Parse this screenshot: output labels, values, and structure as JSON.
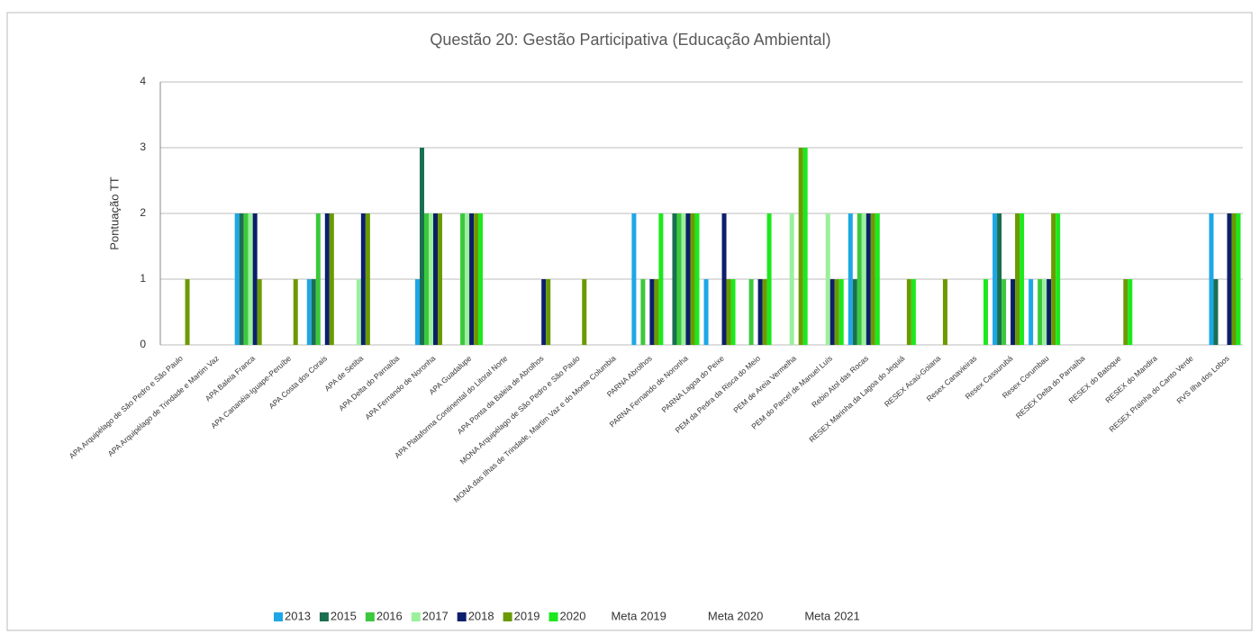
{
  "chart_data": {
    "type": "bar",
    "title": "Questão 20: Gestão Participativa (Educação Ambiental)",
    "y_label": "Pontuação TT",
    "categories": [
      "APA Arquipélago de São Pedro e São Paulo",
      "APA Arquipélago de Trindade e Martim Vaz",
      "APA Baleia Franca",
      "APA Cananéia-Iguape-Peruíbe",
      "APA Costa dos Corais",
      "APA de Setiba",
      "APA Delta do Parnaíba",
      "APA Fernando de Noronha",
      "APA Guadalupe",
      "APA Plataforma Continental do Litoral Norte",
      "APA Ponta da Baleia de Abrolhos",
      "MONA Arquipélago de São Pedro e São Paulo",
      "MONA das Ilhas de Trindade, Martim Vaz e do Monte Columbia",
      "PARNA Abrolhos",
      "PARNA Fernando de Noronha",
      "PARNA Lagoa do Peixe",
      "PEM da Pedra da Risca do Meio",
      "PEM de Areia Vermelha",
      "PEM do Parcel de Manuel Luís",
      "Rebio Atol das Rocas",
      "RESEX Marinha da Lagoa do Jequiá",
      "RESEX Acaú-Goiana",
      "Resex Canavieiras",
      "Resex Cassurubá",
      "Resex Corumbau",
      "RESEX Delta do Parnaíba",
      "RESEX do Batoque",
      "RESEX do Mandira",
      "RESEX Prainha do Canto Verde",
      "RVS Ilha dos Lobos"
    ],
    "series": [
      {
        "name": "2013",
        "color": "#1ea7e6",
        "values": [
          0,
          0,
          2,
          0,
          1,
          0,
          0,
          1,
          0,
          0,
          0,
          0,
          0,
          2,
          0,
          1,
          0,
          0,
          0,
          2,
          0,
          0,
          0,
          2,
          1,
          0,
          0,
          0,
          0,
          2
        ]
      },
      {
        "name": "2015",
        "color": "#1a6f50",
        "values": [
          0,
          0,
          2,
          0,
          1,
          0,
          0,
          3,
          0,
          0,
          0,
          0,
          0,
          0,
          2,
          0,
          0,
          0,
          0,
          1,
          0,
          0,
          0,
          2,
          0,
          0,
          0,
          0,
          0,
          1
        ]
      },
      {
        "name": "2016",
        "color": "#3cc83c",
        "values": [
          0,
          0,
          2,
          0,
          2,
          0,
          0,
          2,
          2,
          0,
          0,
          0,
          0,
          1,
          2,
          0,
          1,
          0,
          0,
          2,
          0,
          0,
          0,
          1,
          1,
          0,
          0,
          0,
          0,
          0
        ]
      },
      {
        "name": "2017",
        "color": "#9cf09c",
        "values": [
          0,
          0,
          2,
          0,
          0,
          1,
          0,
          2,
          2,
          0,
          0,
          0,
          0,
          0,
          2,
          0,
          0,
          2,
          2,
          2,
          0,
          0,
          0,
          0,
          1,
          0,
          0,
          0,
          0,
          0
        ]
      },
      {
        "name": "2018",
        "color": "#0d1f6b",
        "values": [
          0,
          0,
          2,
          0,
          2,
          2,
          0,
          2,
          2,
          0,
          1,
          0,
          0,
          1,
          2,
          2,
          1,
          0,
          1,
          2,
          0,
          0,
          0,
          1,
          1,
          0,
          0,
          0,
          0,
          2
        ]
      },
      {
        "name": "2019",
        "color": "#6b9a00",
        "values": [
          1,
          0,
          1,
          1,
          2,
          2,
          0,
          2,
          2,
          0,
          1,
          1,
          0,
          1,
          2,
          1,
          1,
          3,
          1,
          2,
          1,
          1,
          0,
          2,
          2,
          0,
          1,
          0,
          0,
          2
        ]
      },
      {
        "name": "2020",
        "color": "#1de81d",
        "values": [
          0,
          0,
          0,
          0,
          0,
          0,
          0,
          0,
          2,
          0,
          0,
          0,
          0,
          2,
          2,
          1,
          2,
          3,
          1,
          2,
          1,
          0,
          1,
          2,
          2,
          0,
          1,
          0,
          0,
          2
        ]
      },
      {
        "name": "Meta 2019",
        "values": [
          null,
          null,
          null,
          null,
          null,
          null,
          null,
          null,
          null,
          null,
          null,
          null,
          null,
          null,
          null,
          null,
          null,
          null,
          null,
          null,
          null,
          null,
          null,
          null,
          null,
          null,
          null,
          null,
          null,
          null
        ]
      },
      {
        "name": "Meta 2020",
        "values": [
          null,
          null,
          null,
          null,
          null,
          null,
          null,
          null,
          null,
          null,
          null,
          null,
          null,
          null,
          null,
          null,
          null,
          null,
          null,
          null,
          null,
          null,
          null,
          null,
          null,
          null,
          null,
          null,
          null,
          null
        ]
      },
      {
        "name": "Meta 2021",
        "values": [
          null,
          null,
          null,
          null,
          null,
          null,
          null,
          null,
          null,
          null,
          null,
          null,
          null,
          null,
          null,
          null,
          null,
          null,
          null,
          null,
          null,
          null,
          null,
          null,
          null,
          null,
          null,
          null,
          null,
          null
        ]
      }
    ],
    "ylim": [
      0,
      4
    ],
    "yticks": [
      0,
      1,
      2,
      3,
      4
    ],
    "grid": true
  }
}
